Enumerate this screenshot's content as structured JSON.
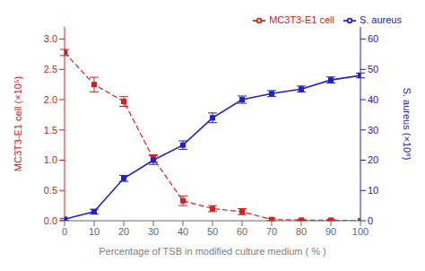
{
  "chart_data": {
    "type": "line",
    "xlabel": "Percentage of TSB in modified culture medium ( % )",
    "ylabel": "MC3T3-E1 cell (×10⁵)",
    "y2label": "S. aureus (×10⁸)",
    "x": [
      0,
      10,
      20,
      30,
      40,
      50,
      60,
      70,
      80,
      90,
      100
    ],
    "series": [
      {
        "name": "MC3T3-E1 cell",
        "color": "#d42020",
        "line_style": "dashed",
        "marker": "square",
        "values": [
          2.78,
          2.25,
          1.97,
          1.03,
          0.33,
          0.2,
          0.15,
          0.02,
          0.01,
          0.01,
          0.0
        ],
        "errors": [
          0.05,
          0.12,
          0.08,
          0.06,
          0.08,
          0.05,
          0.05,
          0.02,
          0.01,
          0.01,
          0.0
        ]
      },
      {
        "name": "S. aureus",
        "color": "#2020cc",
        "line_style": "solid",
        "marker": "square",
        "axis": "y2",
        "values": [
          0.5,
          3.0,
          14.0,
          20.0,
          25.0,
          34.0,
          40.0,
          42.0,
          43.5,
          46.5,
          48.0
        ],
        "errors": [
          0.3,
          0.8,
          1.0,
          1.4,
          1.4,
          1.6,
          1.2,
          1.0,
          1.0,
          1.0,
          0.8
        ]
      }
    ],
    "xlim": [
      0,
      100
    ],
    "xticks": [
      0,
      10,
      20,
      30,
      40,
      50,
      60,
      70,
      80,
      90,
      100
    ],
    "ylim": [
      0,
      3.2
    ],
    "yticks": [
      {
        "value": 0,
        "label": "0.0"
      },
      0.5,
      {
        "value": 1,
        "label": "1.0"
      },
      1.5,
      {
        "value": 2,
        "label": "2.0"
      },
      2.5,
      {
        "value": 3,
        "label": "3.0"
      }
    ],
    "y2lim": [
      0,
      64
    ],
    "y2ticks": [
      0,
      10,
      20,
      30,
      40,
      50,
      60
    ],
    "legend": "upper right",
    "grid": false
  }
}
